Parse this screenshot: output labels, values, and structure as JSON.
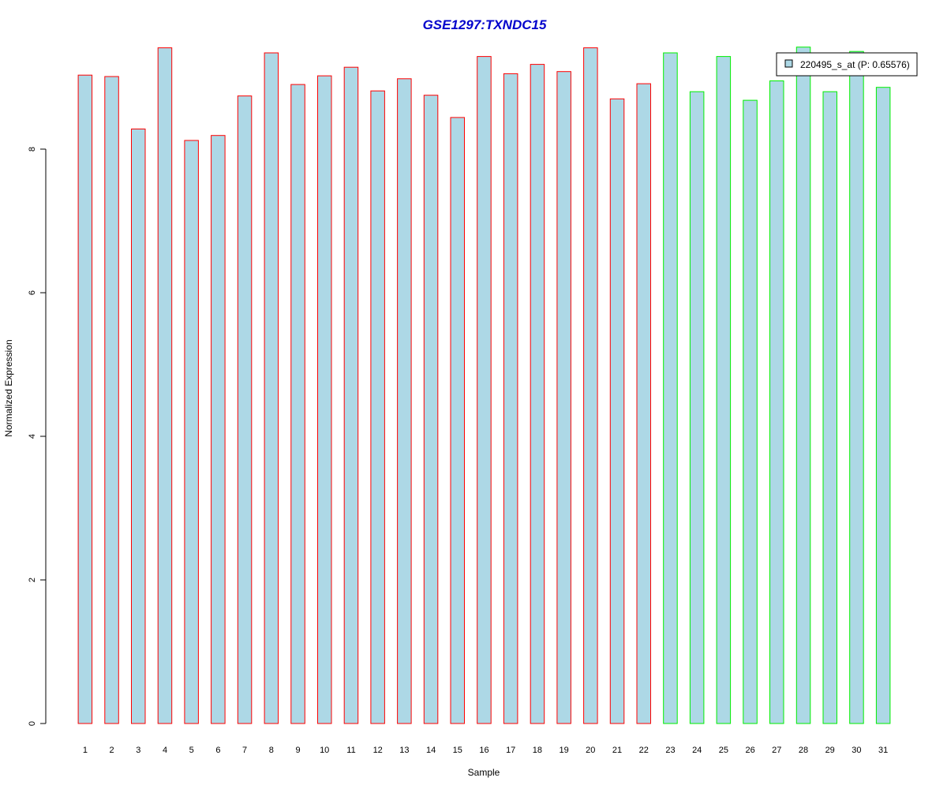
{
  "chart_data": {
    "type": "bar",
    "title": "GSE1297:TXNDC15",
    "xlabel": "Sample",
    "ylabel": "Normalized Expression",
    "ylim": [
      0,
      9.45
    ],
    "yticks": [
      0,
      2,
      4,
      6,
      8
    ],
    "grid": false,
    "legend_position": "top-right",
    "categories": [
      "1",
      "2",
      "3",
      "4",
      "5",
      "6",
      "7",
      "8",
      "9",
      "10",
      "11",
      "12",
      "13",
      "14",
      "15",
      "16",
      "17",
      "18",
      "19",
      "20",
      "21",
      "22",
      "23",
      "24",
      "25",
      "26",
      "27",
      "28",
      "29",
      "30",
      "31"
    ],
    "series": [
      {
        "name": "220495_s_at (P: 0.65576)",
        "values": [
          9.03,
          9.01,
          8.28,
          9.41,
          8.12,
          8.19,
          8.74,
          9.34,
          8.9,
          9.02,
          9.14,
          8.81,
          8.98,
          8.75,
          8.44,
          9.29,
          9.05,
          9.18,
          9.08,
          9.41,
          8.7,
          8.91,
          9.34,
          8.8,
          9.29,
          8.68,
          8.95,
          9.42,
          8.8,
          9.36,
          8.86
        ]
      }
    ],
    "group_border_colors": [
      "#ff0000",
      "#ff0000",
      "#ff0000",
      "#ff0000",
      "#ff0000",
      "#ff0000",
      "#ff0000",
      "#ff0000",
      "#ff0000",
      "#ff0000",
      "#ff0000",
      "#ff0000",
      "#ff0000",
      "#ff0000",
      "#ff0000",
      "#ff0000",
      "#ff0000",
      "#ff0000",
      "#ff0000",
      "#ff0000",
      "#ff0000",
      "#ff0000",
      "#00ee00",
      "#00ee00",
      "#00ee00",
      "#00ee00",
      "#00ee00",
      "#00ee00",
      "#00ee00",
      "#00ee00",
      "#00ee00"
    ],
    "fill_color": "#add8e6",
    "title_color": "#0000cc"
  }
}
